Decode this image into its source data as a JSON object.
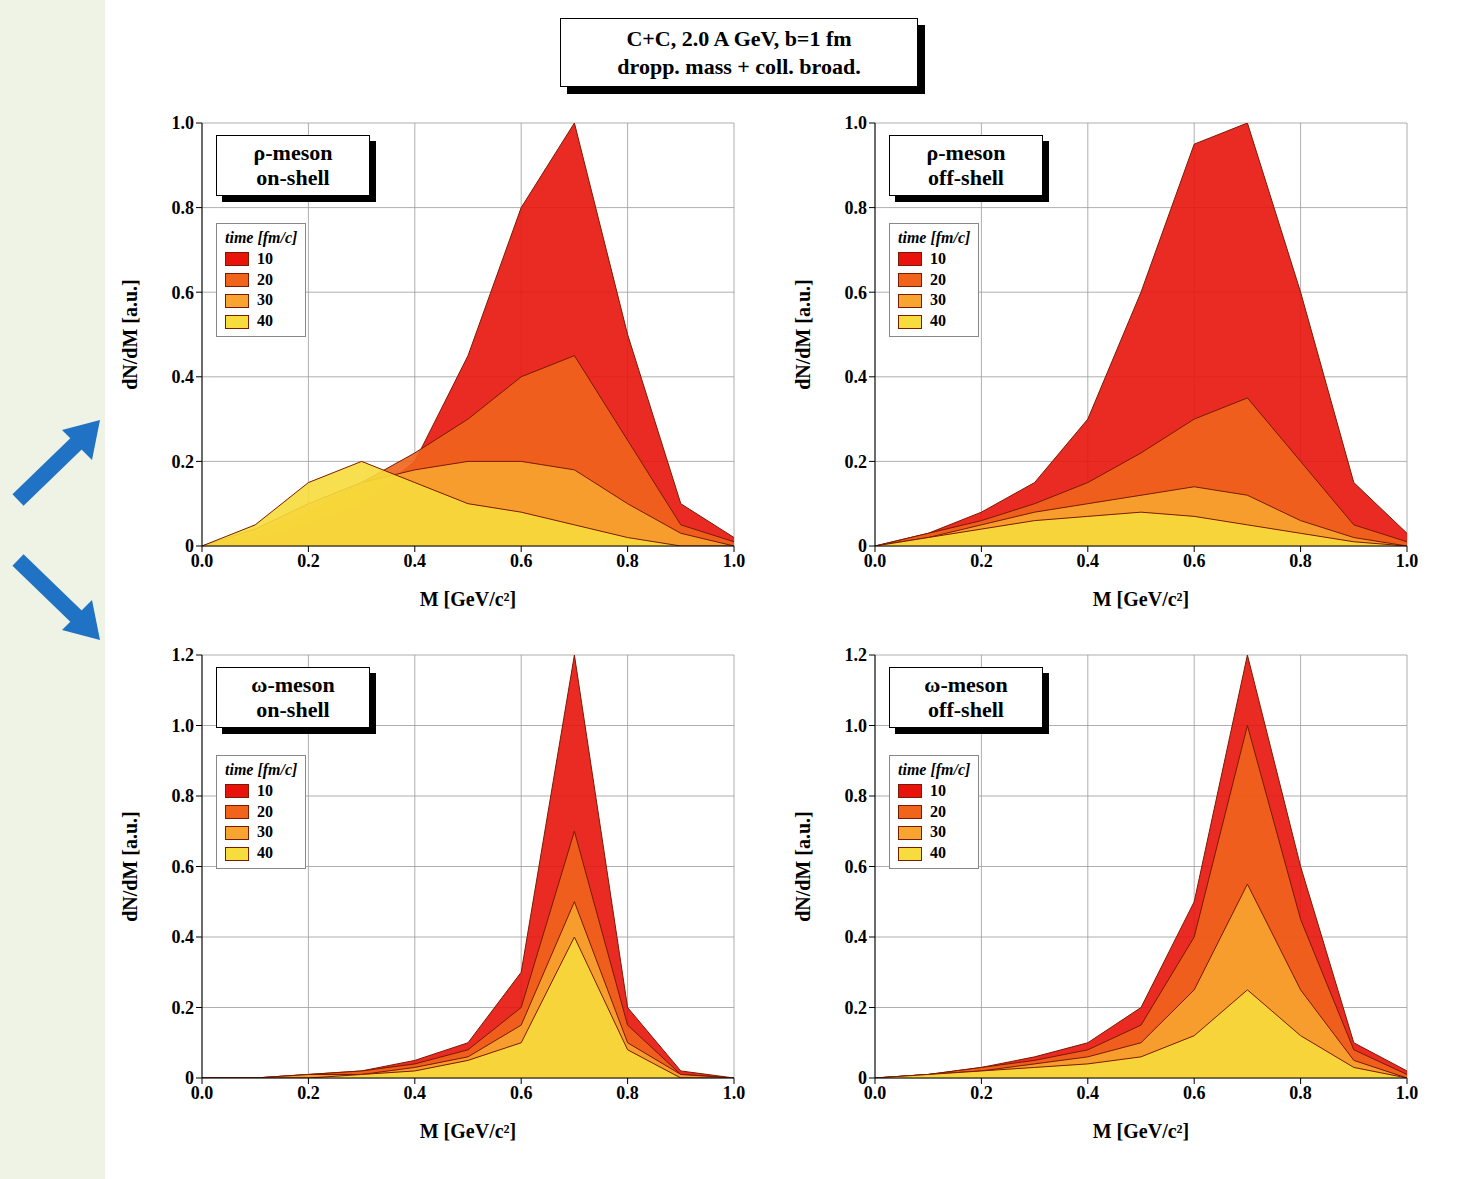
{
  "header": [
    "C+C,  2.0 A GeV,  b=1 fm",
    "dropp. mass + coll. broad."
  ],
  "chart_data": [
    {
      "type": "area",
      "title": "ρ-meson on-shell",
      "xlabel": "M [GeV/c²]",
      "ylabel": "dN/dM [a.u.]",
      "legend_title": "time [fm/c]",
      "legend": "upper left",
      "grid": true,
      "x": [
        0,
        0.1,
        0.2,
        0.3,
        0.4,
        0.5,
        0.6,
        0.7,
        0.8,
        0.9,
        1
      ],
      "xlim": [
        0,
        1
      ],
      "xticks": [
        {
          "value": 0,
          "label": "0.0"
        },
        0.2,
        0.4,
        0.6,
        0.8,
        {
          "value": 1,
          "label": "1.0"
        }
      ],
      "ylim": [
        0,
        1
      ],
      "yticks": [
        0,
        0.2,
        0.4,
        0.6,
        0.8,
        {
          "value": 1,
          "label": "1.0"
        }
      ],
      "series": [
        {
          "name": "10",
          "color": "#e8140c",
          "values": [
            0,
            0.02,
            0.05,
            0.1,
            0.2,
            0.45,
            0.8,
            1.0,
            0.5,
            0.1,
            0.02
          ]
        },
        {
          "name": "20",
          "color": "#f0641c",
          "values": [
            0,
            0.03,
            0.08,
            0.15,
            0.22,
            0.3,
            0.4,
            0.45,
            0.25,
            0.05,
            0.01
          ]
        },
        {
          "name": "30",
          "color": "#f7a431",
          "values": [
            0,
            0.04,
            0.1,
            0.15,
            0.18,
            0.2,
            0.2,
            0.18,
            0.1,
            0.03,
            0
          ]
        },
        {
          "name": "40",
          "color": "#f6dc3c",
          "values": [
            0,
            0.05,
            0.15,
            0.2,
            0.15,
            0.1,
            0.08,
            0.05,
            0.02,
            0,
            0
          ]
        }
      ]
    },
    {
      "type": "area",
      "title": "ρ-meson off-shell",
      "xlabel": "M [GeV/c²]",
      "ylabel": "dN/dM [a.u.]",
      "legend_title": "time [fm/c]",
      "legend": "upper left",
      "grid": true,
      "x": [
        0,
        0.1,
        0.2,
        0.3,
        0.4,
        0.5,
        0.6,
        0.7,
        0.8,
        0.9,
        1
      ],
      "xlim": [
        0,
        1
      ],
      "xticks": [
        {
          "value": 0,
          "label": "0.0"
        },
        0.2,
        0.4,
        0.6,
        0.8,
        {
          "value": 1,
          "label": "1.0"
        }
      ],
      "ylim": [
        0,
        1
      ],
      "yticks": [
        0,
        0.2,
        0.4,
        0.6,
        0.8,
        {
          "value": 1,
          "label": "1.0"
        }
      ],
      "series": [
        {
          "name": "10",
          "color": "#e8140c",
          "values": [
            0,
            0.03,
            0.08,
            0.15,
            0.3,
            0.6,
            0.95,
            1.0,
            0.6,
            0.15,
            0.03
          ]
        },
        {
          "name": "20",
          "color": "#f0641c",
          "values": [
            0,
            0.03,
            0.06,
            0.1,
            0.15,
            0.22,
            0.3,
            0.35,
            0.2,
            0.05,
            0.01
          ]
        },
        {
          "name": "30",
          "color": "#f7a431",
          "values": [
            0,
            0.02,
            0.05,
            0.08,
            0.1,
            0.12,
            0.14,
            0.12,
            0.06,
            0.02,
            0
          ]
        },
        {
          "name": "40",
          "color": "#f6dc3c",
          "values": [
            0,
            0.02,
            0.04,
            0.06,
            0.07,
            0.08,
            0.07,
            0.05,
            0.03,
            0.01,
            0
          ]
        }
      ]
    },
    {
      "type": "area",
      "title": "ω-meson on-shell",
      "xlabel": "M [GeV/c²]",
      "ylabel": "dN/dM [a.u.]",
      "legend_title": "time [fm/c]",
      "legend": "upper left",
      "grid": true,
      "x": [
        0,
        0.1,
        0.2,
        0.3,
        0.4,
        0.5,
        0.6,
        0.7,
        0.8,
        0.9,
        1
      ],
      "xlim": [
        0,
        1
      ],
      "xticks": [
        {
          "value": 0,
          "label": "0.0"
        },
        0.2,
        0.4,
        0.6,
        0.8,
        {
          "value": 1,
          "label": "1.0"
        }
      ],
      "ylim": [
        0,
        1.2
      ],
      "yticks": [
        0,
        0.2,
        0.4,
        0.6,
        0.8,
        {
          "value": 1,
          "label": "1.0"
        },
        1.2
      ],
      "series": [
        {
          "name": "10",
          "color": "#e8140c",
          "values": [
            0,
            0,
            0.01,
            0.02,
            0.05,
            0.1,
            0.3,
            1.2,
            0.2,
            0.02,
            0
          ]
        },
        {
          "name": "20",
          "color": "#f0641c",
          "values": [
            0,
            0,
            0.01,
            0.02,
            0.04,
            0.08,
            0.2,
            0.7,
            0.15,
            0.01,
            0
          ]
        },
        {
          "name": "30",
          "color": "#f7a431",
          "values": [
            0,
            0,
            0.01,
            0.01,
            0.03,
            0.06,
            0.15,
            0.5,
            0.1,
            0.01,
            0
          ]
        },
        {
          "name": "40",
          "color": "#f6dc3c",
          "values": [
            0,
            0,
            0,
            0.01,
            0.02,
            0.05,
            0.1,
            0.4,
            0.08,
            0,
            0
          ]
        }
      ]
    },
    {
      "type": "area",
      "title": "ω-meson off-shell",
      "xlabel": "M [GeV/c²]",
      "ylabel": "dN/dM [a.u.]",
      "legend_title": "time [fm/c]",
      "legend": "upper left",
      "grid": true,
      "x": [
        0,
        0.1,
        0.2,
        0.3,
        0.4,
        0.5,
        0.6,
        0.7,
        0.8,
        0.9,
        1
      ],
      "xlim": [
        0,
        1
      ],
      "xticks": [
        {
          "value": 0,
          "label": "0.0"
        },
        0.2,
        0.4,
        0.6,
        0.8,
        {
          "value": 1,
          "label": "1.0"
        }
      ],
      "ylim": [
        0,
        1.2
      ],
      "yticks": [
        0,
        0.2,
        0.4,
        0.6,
        0.8,
        {
          "value": 1,
          "label": "1.0"
        },
        1.2
      ],
      "series": [
        {
          "name": "10",
          "color": "#e8140c",
          "values": [
            0,
            0.01,
            0.03,
            0.06,
            0.1,
            0.2,
            0.5,
            1.2,
            0.6,
            0.1,
            0.02
          ]
        },
        {
          "name": "20",
          "color": "#f0641c",
          "values": [
            0,
            0.01,
            0.03,
            0.05,
            0.08,
            0.15,
            0.4,
            1.0,
            0.45,
            0.08,
            0.01
          ]
        },
        {
          "name": "30",
          "color": "#f7a431",
          "values": [
            0,
            0.01,
            0.02,
            0.04,
            0.06,
            0.1,
            0.25,
            0.55,
            0.25,
            0.05,
            0
          ]
        },
        {
          "name": "40",
          "color": "#f6dc3c",
          "values": [
            0,
            0.01,
            0.02,
            0.03,
            0.04,
            0.06,
            0.12,
            0.25,
            0.12,
            0.03,
            0
          ]
        }
      ]
    }
  ]
}
